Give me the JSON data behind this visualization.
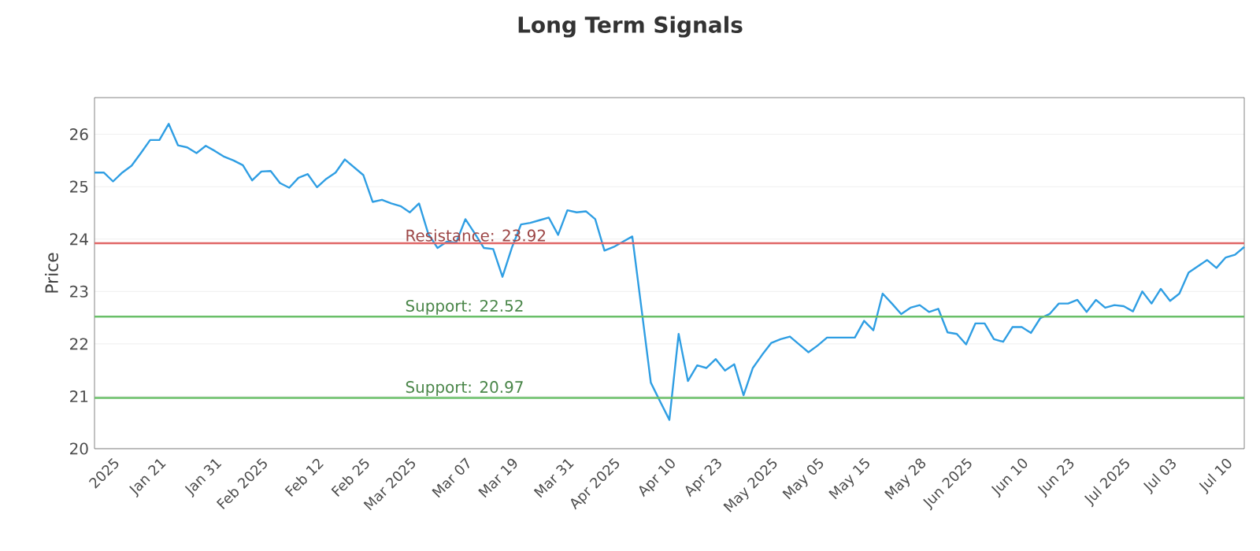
{
  "chart_data": {
    "type": "line",
    "title": "Long Term Signals",
    "ylabel": "Price",
    "categories": [
      null,
      null,
      "2025",
      null,
      null,
      null,
      null,
      "Jan 21",
      null,
      null,
      null,
      null,
      null,
      "Jan 31",
      null,
      null,
      null,
      null,
      "Feb 2025",
      null,
      null,
      null,
      null,
      null,
      "Feb 12",
      null,
      null,
      null,
      null,
      "Feb 25",
      null,
      null,
      null,
      null,
      "Mar 2025",
      null,
      null,
      null,
      null,
      null,
      "Mar 07",
      null,
      null,
      null,
      null,
      "Mar 19",
      null,
      null,
      null,
      null,
      null,
      "Mar 31",
      null,
      null,
      null,
      null,
      "Apr 2025",
      null,
      null,
      null,
      null,
      null,
      "Apr 10",
      null,
      null,
      null,
      null,
      "Apr 23",
      null,
      null,
      null,
      null,
      null,
      "May 2025",
      null,
      null,
      null,
      null,
      "May 05",
      null,
      null,
      null,
      null,
      "May 15",
      null,
      null,
      null,
      null,
      null,
      "May 28",
      null,
      null,
      null,
      null,
      "Jun 2025",
      null,
      null,
      null,
      null,
      null,
      "Jun 10",
      null,
      null,
      null,
      null,
      "Jun 23",
      null,
      null,
      null,
      null,
      null,
      "Jul 2025",
      null,
      null,
      null,
      null,
      "Jul 03",
      null,
      null,
      null,
      null,
      null,
      "Jul 10",
      null,
      null
    ],
    "series": [
      {
        "color": "#2f9ee3",
        "values": [
          25.27,
          25.27,
          25.1,
          25.27,
          25.4,
          25.64,
          25.89,
          25.89,
          26.2,
          25.79,
          25.75,
          25.64,
          25.78,
          25.68,
          25.57,
          25.5,
          25.41,
          25.12,
          25.29,
          25.3,
          25.07,
          24.98,
          25.17,
          25.24,
          24.99,
          25.15,
          25.27,
          25.52,
          25.37,
          25.22,
          24.71,
          24.75,
          24.68,
          24.63,
          24.51,
          24.68,
          24.1,
          23.83,
          23.95,
          23.93,
          24.38,
          24.11,
          23.83,
          23.81,
          23.28,
          23.83,
          24.28,
          24.31,
          24.36,
          24.41,
          24.08,
          24.55,
          24.51,
          24.53,
          24.38,
          23.78,
          23.85,
          23.95,
          24.05,
          22.66,
          21.26,
          20.9,
          20.55,
          22.19,
          21.29,
          21.59,
          21.54,
          21.71,
          21.49,
          21.61,
          21.02,
          21.54,
          21.79,
          22.02,
          22.09,
          22.14,
          21.99,
          21.84,
          21.97,
          22.12,
          22.12,
          22.12,
          22.12,
          22.44,
          22.26,
          22.96,
          22.77,
          22.57,
          22.69,
          22.74,
          22.61,
          22.67,
          22.22,
          22.19,
          21.99,
          22.39,
          22.39,
          22.09,
          22.04,
          22.32,
          22.32,
          22.21,
          22.49,
          22.57,
          22.77,
          22.77,
          22.84,
          22.61,
          22.84,
          22.69,
          22.74,
          22.72,
          22.62,
          23.0,
          22.77,
          23.05,
          22.82,
          22.96,
          23.36,
          23.48,
          23.6,
          23.45,
          23.65,
          23.7,
          23.85
        ]
      }
    ],
    "ylim": [
      20,
      26.7
    ],
    "yticks": [
      20,
      21,
      22,
      23,
      24,
      25,
      26
    ],
    "grid": "y",
    "ref_lines": [
      {
        "axis": "y",
        "value": 23.92,
        "label": "Resistance: 23.92",
        "color": "#e06666"
      },
      {
        "axis": "y",
        "value": 22.52,
        "label": "Support: 22.52",
        "color": "#6abf69"
      },
      {
        "axis": "y",
        "value": 20.97,
        "label": "Support: 20.97",
        "color": "#6abf69"
      }
    ]
  }
}
